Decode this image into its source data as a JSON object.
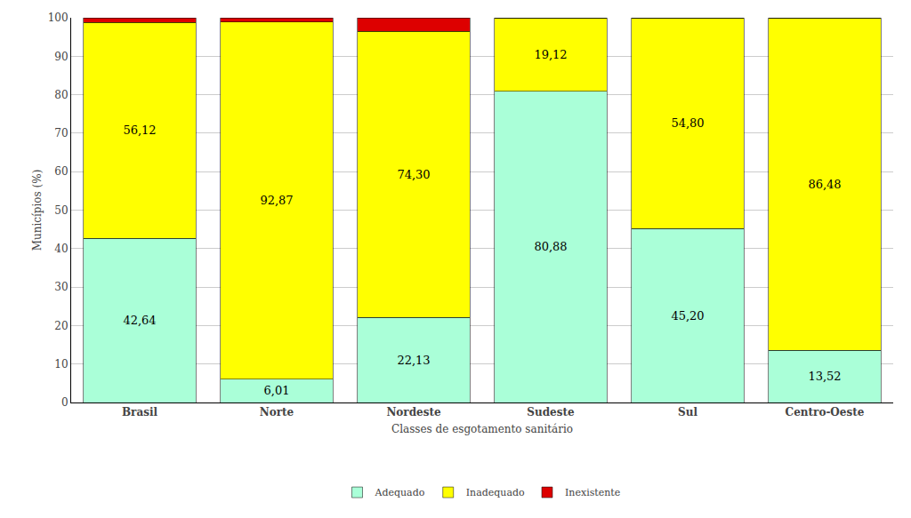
{
  "chart_data": {
    "type": "bar",
    "stacked": true,
    "xlabel": "Classes de esgotamento sanitário",
    "ylabel": "Municípios (%)",
    "categories": [
      "Brasil",
      "Norte",
      "Nordeste",
      "Sudeste",
      "Sul",
      "Centro-Oeste"
    ],
    "series": [
      {
        "name": "Adequado",
        "color": "#aaffd8",
        "values": [
          42.64,
          6.01,
          22.13,
          80.88,
          45.2,
          13.52
        ],
        "value_labels": [
          "42,64",
          "6,01",
          "22,13",
          "80,88",
          "45,20",
          "13,52"
        ]
      },
      {
        "name": "Inadequado",
        "color": "#ffff00",
        "values": [
          56.12,
          92.87,
          74.3,
          19.12,
          54.8,
          86.48
        ],
        "value_labels": [
          "56,12",
          "92,87",
          "74,30",
          "19,12",
          "54,80",
          "86,48"
        ]
      },
      {
        "name": "Inexistente",
        "color": "#dd0000",
        "values": [
          1.24,
          1.12,
          3.57,
          0.0,
          0.0,
          0.0
        ]
      }
    ],
    "ylim": [
      0,
      100
    ],
    "yticks": [
      0,
      10,
      20,
      30,
      40,
      50,
      60,
      70,
      80,
      90,
      100
    ],
    "grid": true,
    "data_labels": true,
    "legend": "bottom"
  }
}
